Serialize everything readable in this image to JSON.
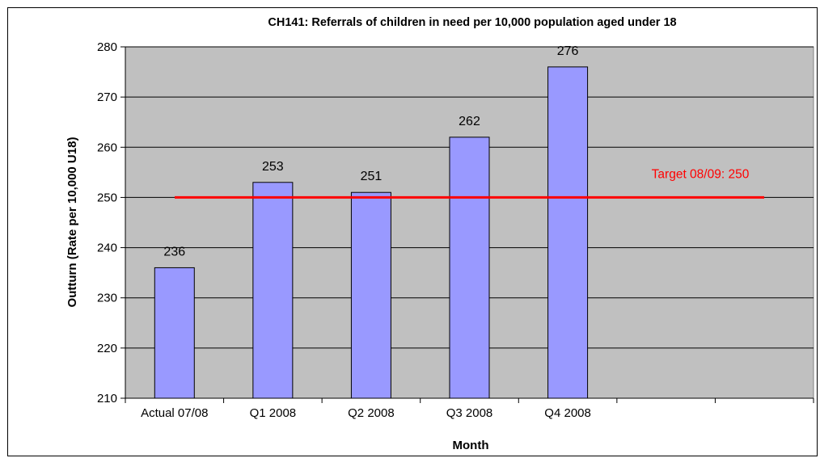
{
  "chart_data": {
    "type": "bar",
    "title": "CH141: Referrals of children in need per 10,000 population aged under 18",
    "xlabel": "Month",
    "ylabel": "Outturn (Rate per 10,000 U18)",
    "categories": [
      "Actual 07/08",
      "Q1 2008",
      "Q2 2008",
      "Q3 2008",
      "Q4 2008",
      "",
      ""
    ],
    "values": [
      236,
      253,
      251,
      262,
      276,
      null,
      null
    ],
    "ylim": [
      210,
      280
    ],
    "yticks": [
      210,
      220,
      230,
      240,
      250,
      260,
      270,
      280
    ],
    "grid": true,
    "target": {
      "label": "Target 08/09: 250",
      "value": 250
    },
    "colors": {
      "plot_background": "#c0c0c0",
      "bar_fill": "#9999ff",
      "bar_stroke": "#000000",
      "target_line": "#ff0000"
    }
  }
}
